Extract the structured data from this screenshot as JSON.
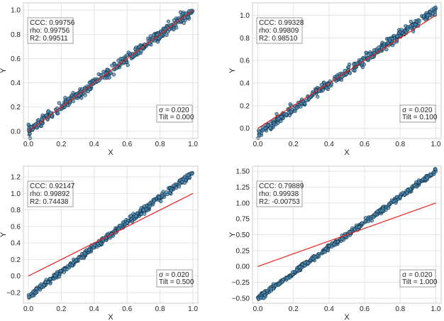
{
  "chart_data": [
    {
      "type": "scatter",
      "title": "",
      "xlabel": "X",
      "ylabel": "Y",
      "xlim": [
        -0.03,
        1.03
      ],
      "ylim": [
        -0.06,
        1.06
      ],
      "xticks": [
        "0.0",
        "0.2",
        "0.4",
        "0.6",
        "0.8",
        "1.0"
      ],
      "yticks": [
        "0.0",
        "0.2",
        "0.4",
        "0.6",
        "0.8",
        "1.0"
      ],
      "xtick_values": [
        0,
        0.2,
        0.4,
        0.6,
        0.8,
        1.0
      ],
      "ytick_values": [
        0,
        0.2,
        0.4,
        0.6,
        0.8,
        1.0
      ],
      "tilt": 0.0,
      "noise_sigma": 0.02,
      "reference_line": {
        "x": [
          0,
          1
        ],
        "y": [
          0,
          1
        ],
        "color": "#e8211b"
      },
      "point_color": "#4e8bb3",
      "metrics_box": {
        "position": "top-left",
        "lines": [
          "CCC: 0.99756",
          "rho: 0.99756",
          "R2: 0.99511"
        ]
      },
      "param_box": {
        "position": "bottom-right",
        "lines": [
          "σ =  0.020",
          "Tilt = 0.000"
        ]
      }
    },
    {
      "type": "scatter",
      "title": "",
      "xlabel": "X",
      "ylabel": "Y",
      "xlim": [
        -0.03,
        1.03
      ],
      "ylim": [
        -0.09,
        1.11
      ],
      "xticks": [
        "0.0",
        "0.2",
        "0.4",
        "0.6",
        "0.8",
        "1.0"
      ],
      "yticks": [
        "0.0",
        "0.2",
        "0.4",
        "0.6",
        "0.8",
        "1.0"
      ],
      "xtick_values": [
        0,
        0.2,
        0.4,
        0.6,
        0.8,
        1.0
      ],
      "ytick_values": [
        0,
        0.2,
        0.4,
        0.6,
        0.8,
        1.0
      ],
      "tilt": 0.1,
      "noise_sigma": 0.02,
      "reference_line": {
        "x": [
          0,
          1
        ],
        "y": [
          0,
          1
        ],
        "color": "#e8211b"
      },
      "point_color": "#4e8bb3",
      "metrics_box": {
        "position": "top-left",
        "lines": [
          "CCC: 0.99328",
          "rho: 0.99809",
          "R2: 0.98510"
        ]
      },
      "param_box": {
        "position": "bottom-right",
        "lines": [
          "σ =  0.020",
          "Tilt = 0.100"
        ]
      }
    },
    {
      "type": "scatter",
      "title": "",
      "xlabel": "X",
      "ylabel": "Y",
      "xlim": [
        -0.03,
        1.03
      ],
      "ylim": [
        -0.33,
        1.33
      ],
      "xticks": [
        "0.0",
        "0.2",
        "0.4",
        "0.6",
        "0.8",
        "1.0"
      ],
      "yticks": [
        "−0.2",
        "0.0",
        "0.2",
        "0.4",
        "0.6",
        "0.8",
        "1.0",
        "1.2"
      ],
      "xtick_values": [
        0,
        0.2,
        0.4,
        0.6,
        0.8,
        1.0
      ],
      "ytick_values": [
        -0.2,
        0,
        0.2,
        0.4,
        0.6,
        0.8,
        1.0,
        1.2
      ],
      "tilt": 0.5,
      "noise_sigma": 0.02,
      "reference_line": {
        "x": [
          0,
          1
        ],
        "y": [
          0,
          1
        ],
        "color": "#e8211b"
      },
      "point_color": "#4e8bb3",
      "metrics_box": {
        "position": "top-left",
        "lines": [
          "CCC: 0.92147",
          "rho: 0.99892",
          "R2: 0.74438"
        ]
      },
      "param_box": {
        "position": "bottom-right",
        "lines": [
          "σ =  0.020",
          "Tilt = 0.500"
        ]
      }
    },
    {
      "type": "scatter",
      "title": "",
      "xlabel": "X",
      "ylabel": "Y",
      "xlim": [
        -0.03,
        1.03
      ],
      "ylim": [
        -0.58,
        1.58
      ],
      "xticks": [
        "0.0",
        "0.2",
        "0.4",
        "0.6",
        "0.8",
        "1.0"
      ],
      "yticks": [
        "−0.50",
        "−0.25",
        "0.00",
        "0.25",
        "0.50",
        "0.75",
        "1.00",
        "1.25",
        "1.50"
      ],
      "xtick_values": [
        0,
        0.2,
        0.4,
        0.6,
        0.8,
        1.0
      ],
      "ytick_values": [
        -0.5,
        -0.25,
        0,
        0.25,
        0.5,
        0.75,
        1.0,
        1.25,
        1.5
      ],
      "tilt": 1.0,
      "noise_sigma": 0.02,
      "reference_line": {
        "x": [
          0,
          1
        ],
        "y": [
          0,
          1
        ],
        "color": "#e8211b"
      },
      "point_color": "#4e8bb3",
      "metrics_box": {
        "position": "top-left",
        "lines": [
          "CCC: 0.79889",
          "rho: 0.99938",
          "R2: -0.00753"
        ]
      },
      "param_box": {
        "position": "bottom-right",
        "lines": [
          "σ =  0.020",
          "Tilt = 1.000"
        ]
      }
    }
  ]
}
